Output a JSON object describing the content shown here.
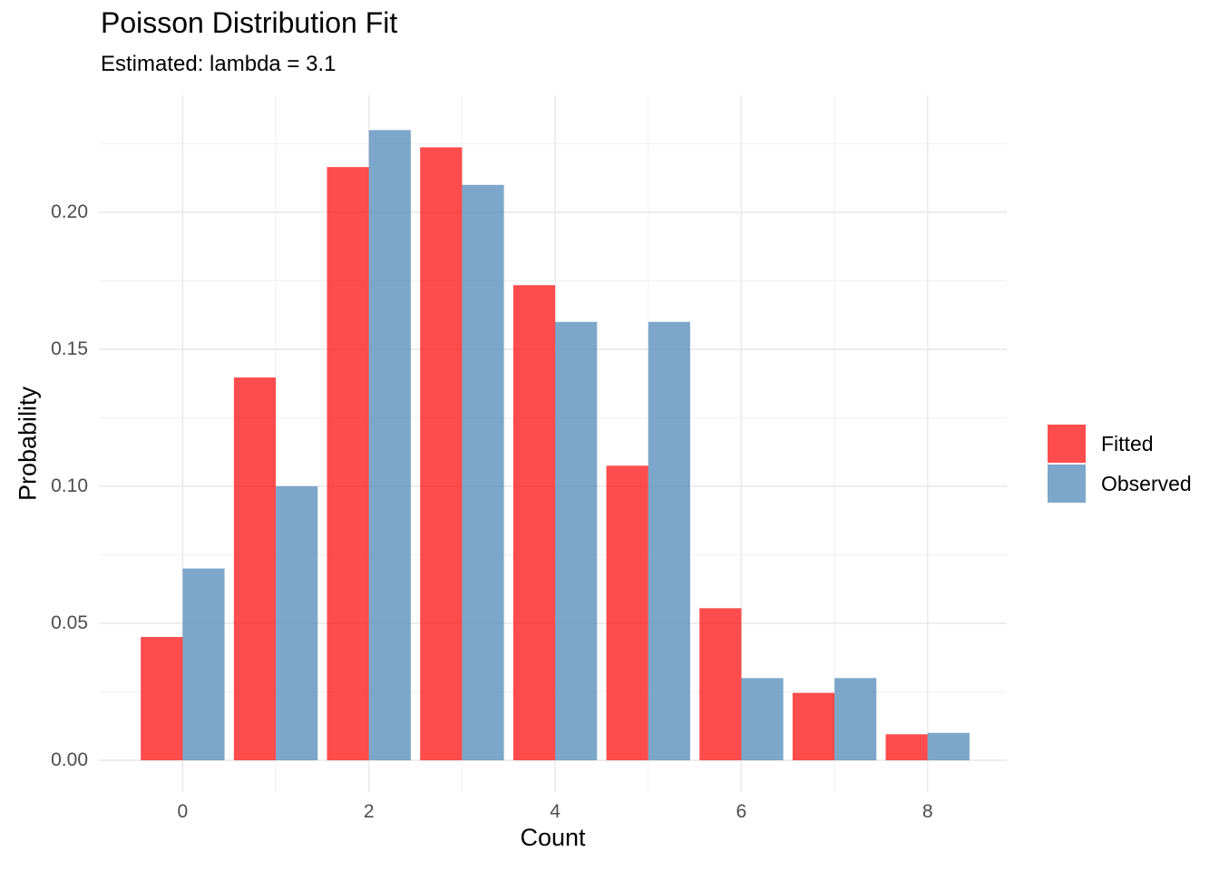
{
  "title": "Poisson Distribution Fit",
  "subtitle": "Estimated: lambda = 3.1",
  "chart_data": {
    "type": "bar",
    "categories": [
      0,
      1,
      2,
      3,
      4,
      5,
      6,
      7,
      8
    ],
    "series": [
      {
        "name": "Fitted",
        "color": "rgba(255,0,0,0.7)",
        "values": [
          0.045,
          0.1397,
          0.2165,
          0.2237,
          0.1734,
          0.1075,
          0.0555,
          0.0246,
          0.0095
        ]
      },
      {
        "name": "Observed",
        "color": "rgba(70,130,180,0.7)",
        "values": [
          0.07,
          0.1,
          0.23,
          0.21,
          0.16,
          0.16,
          0.03,
          0.03,
          0.01
        ]
      }
    ],
    "title": "Poisson Distribution Fit",
    "subtitle": "Estimated: lambda = 3.1",
    "xlabel": "Count",
    "ylabel": "Probability",
    "x_ticks": [
      0,
      2,
      4,
      6,
      8
    ],
    "x_tick_labels": [
      "0",
      "2",
      "4",
      "6",
      "8"
    ],
    "x_minor_ticks": [
      1,
      3,
      5,
      7
    ],
    "y_ticks": [
      0,
      0.05,
      0.1,
      0.15,
      0.2
    ],
    "y_tick_labels": [
      "0.00",
      "0.05",
      "0.10",
      "0.15",
      "0.20"
    ],
    "y_minor_ticks": [
      0.025,
      0.075,
      0.125,
      0.175,
      0.225
    ],
    "xlim": [
      -0.9,
      8.85
    ],
    "ylim": [
      -0.0116,
      0.2427
    ],
    "bar_width": 0.45,
    "grid": true,
    "legend_position": "right",
    "legend_entries": [
      "Fitted",
      "Observed"
    ]
  },
  "colors": {
    "fitted_solid": "#FF4D4D",
    "observed_solid": "#7DA7CA",
    "grid_major": "#EAEAEA",
    "grid_minor": "#F1F1F1",
    "tick_text": "#4D4D4D",
    "title_text": "#000000",
    "background": "#FFFFFF"
  }
}
